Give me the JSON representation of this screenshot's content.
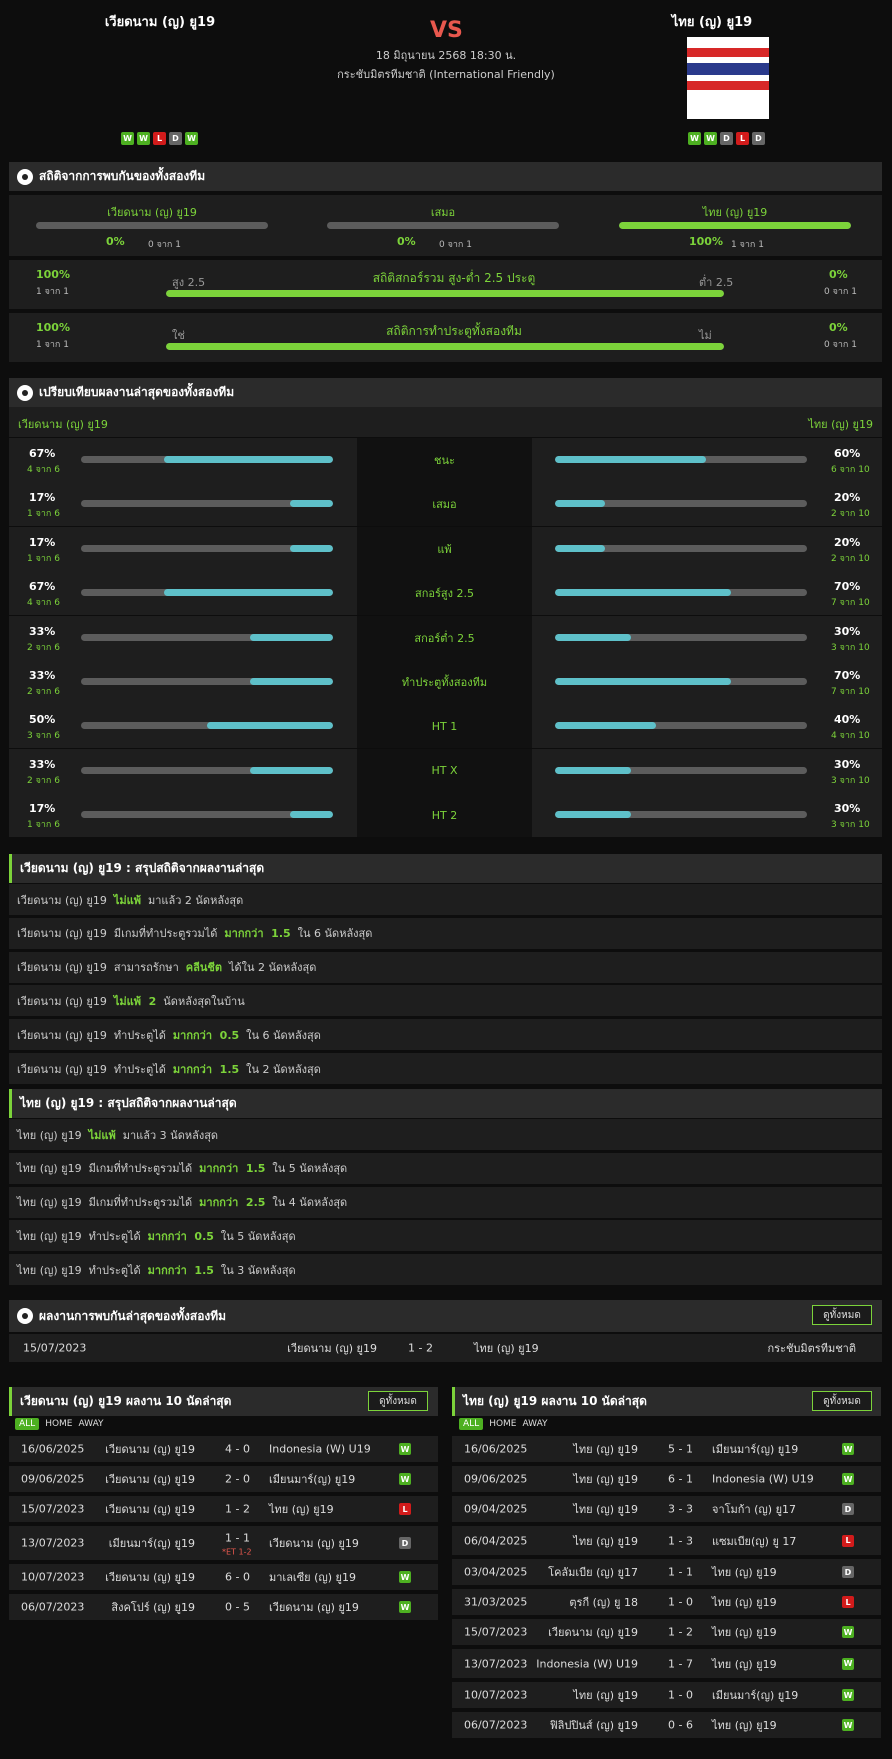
{
  "header": {
    "home": "เวียดนาม (ญ) ยู19",
    "away": "ไทย (ญ) ยู19",
    "vs": "VS",
    "datetime": "18 มิถุนายน 2568 18:30 น.",
    "competition": "กระชับมิตรทีมชาติ (International Friendly)",
    "home_form": [
      "W",
      "W",
      "L",
      "D",
      "W"
    ],
    "away_form": [
      "W",
      "W",
      "D",
      "L",
      "D"
    ],
    "flag_colors": [
      "#d72828",
      "#ffffff",
      "#2a3a8c",
      "#ffffff",
      "#d72828"
    ]
  },
  "h2h": {
    "title": "สถิติจากการพบกันของทั้งสองทีม",
    "cols": [
      {
        "label": "เวียดนาม (ญ) ยู19",
        "pct": "0%",
        "count": "0 จาก 1",
        "value": 0
      },
      {
        "label": "เสมอ",
        "pct": "0%",
        "count": "0 จาก 1",
        "value": 0
      },
      {
        "label": "ไทย (ญ) ยู19",
        "pct": "100%",
        "count": "1 จาก 1",
        "value": 1
      }
    ],
    "ou": {
      "title": "สถิติสกอร์รวม สูง-ต่ำ 2.5 ประตู",
      "left_label": "สูง 2.5",
      "right_label": "ต่ำ 2.5",
      "left_pct": "100%",
      "left_count": "1 จาก 1",
      "right_pct": "0%",
      "right_count": "0 จาก 1",
      "value": 1
    },
    "btts": {
      "title": "สถิติการทำประตูทั้งสองทีม",
      "left_label": "ใช่",
      "right_label": "ไม่",
      "left_pct": "100%",
      "left_count": "1 จาก 1",
      "right_pct": "0%",
      "right_count": "0 จาก 1",
      "value": 1
    }
  },
  "compare": {
    "title": "เปรียบเทียบผลงานล่าสุดของทั้งสองทีม",
    "home": "เวียดนาม (ญ) ยู19",
    "away": "ไทย (ญ) ยู19",
    "rows": [
      {
        "label": "ชนะ",
        "hp": "67%",
        "hc": "4 จาก 6",
        "hv": 0.67,
        "ap": "60%",
        "ac": "6 จาก 10",
        "av": 0.6
      },
      {
        "label": "เสมอ",
        "hp": "17%",
        "hc": "1 จาก 6",
        "hv": 0.17,
        "ap": "20%",
        "ac": "2 จาก 10",
        "av": 0.2
      },
      {
        "label": "แพ้",
        "hp": "17%",
        "hc": "1 จาก 6",
        "hv": 0.17,
        "ap": "20%",
        "ac": "2 จาก 10",
        "av": 0.2
      },
      {
        "label": "สกอร์สูง 2.5",
        "hp": "67%",
        "hc": "4 จาก 6",
        "hv": 0.67,
        "ap": "70%",
        "ac": "7 จาก 10",
        "av": 0.7
      },
      {
        "label": "สกอร์ต่ำ 2.5",
        "hp": "33%",
        "hc": "2 จาก 6",
        "hv": 0.33,
        "ap": "30%",
        "ac": "3 จาก 10",
        "av": 0.3
      },
      {
        "label": "ทำประตูทั้งสองทีม",
        "hp": "33%",
        "hc": "2 จาก 6",
        "hv": 0.33,
        "ap": "70%",
        "ac": "7 จาก 10",
        "av": 0.7
      },
      {
        "label": "HT 1",
        "hp": "50%",
        "hc": "3 จาก 6",
        "hv": 0.5,
        "ap": "40%",
        "ac": "4 จาก 10",
        "av": 0.4
      },
      {
        "label": "HT X",
        "hp": "33%",
        "hc": "2 จาก 6",
        "hv": 0.33,
        "ap": "30%",
        "ac": "3 จาก 10",
        "av": 0.3
      },
      {
        "label": "HT 2",
        "hp": "17%",
        "hc": "1 จาก 6",
        "hv": 0.17,
        "ap": "30%",
        "ac": "3 จาก 10",
        "av": 0.3
      }
    ]
  },
  "home_summary": {
    "title": "เวียดนาม (ญ) ยู19 : สรุปสถิติจากผลงานล่าสุด",
    "rows": [
      [
        {
          "t": "เวียดนาม (ญ) ยู19  "
        },
        {
          "t": "ไม่แพ้",
          "g": 1
        },
        {
          "t": "  มาแล้ว 2 นัดหลังสุด"
        }
      ],
      [
        {
          "t": "เวียดนาม (ญ) ยู19  มีเกมที่ทำประตูรวมได้  "
        },
        {
          "t": "มากกว่า  1.5",
          "g": 1
        },
        {
          "t": "  ใน 6 นัดหลังสุด"
        }
      ],
      [
        {
          "t": "เวียดนาม (ญ) ยู19  สามารถรักษา  "
        },
        {
          "t": "คลีนชีต",
          "g": 1
        },
        {
          "t": "  ได้ใน 2 นัดหลังสุด"
        }
      ],
      [
        {
          "t": "เวียดนาม (ญ) ยู19  "
        },
        {
          "t": "ไม่แพ้  2",
          "g": 1
        },
        {
          "t": "  นัดหลังสุดในบ้าน"
        }
      ],
      [
        {
          "t": "เวียดนาม (ญ) ยู19  ทำประตูได้  "
        },
        {
          "t": "มากกว่า  0.5",
          "g": 1
        },
        {
          "t": "  ใน 6 นัดหลังสุด"
        }
      ],
      [
        {
          "t": "เวียดนาม (ญ) ยู19  ทำประตูได้  "
        },
        {
          "t": "มากกว่า  1.5",
          "g": 1
        },
        {
          "t": "  ใน 2 นัดหลังสุด"
        }
      ]
    ]
  },
  "away_summary": {
    "title": "ไทย (ญ) ยู19 : สรุปสถิติจากผลงานล่าสุด",
    "rows": [
      [
        {
          "t": "ไทย (ญ) ยู19  "
        },
        {
          "t": "ไม่แพ้",
          "g": 1
        },
        {
          "t": "  มาแล้ว 3 นัดหลังสุด"
        }
      ],
      [
        {
          "t": "ไทย (ญ) ยู19  มีเกมที่ทำประตูรวมได้  "
        },
        {
          "t": "มากกว่า  1.5",
          "g": 1
        },
        {
          "t": "  ใน 5 นัดหลังสุด"
        }
      ],
      [
        {
          "t": "ไทย (ญ) ยู19  มีเกมที่ทำประตูรวมได้  "
        },
        {
          "t": "มากกว่า  2.5",
          "g": 1
        },
        {
          "t": "  ใน 4 นัดหลังสุด"
        }
      ],
      [
        {
          "t": "ไทย (ญ) ยู19  ทำประตูได้  "
        },
        {
          "t": "มากกว่า  0.5",
          "g": 1
        },
        {
          "t": "  ใน 5 นัดหลังสุด"
        }
      ],
      [
        {
          "t": "ไทย (ญ) ยู19  ทำประตูได้  "
        },
        {
          "t": "มากกว่า  1.5",
          "g": 1
        },
        {
          "t": "  ใน 3 นัดหลังสุด"
        }
      ]
    ]
  },
  "h2h_matches": {
    "title": "ผลงานการพบกันล่าสุดของทั้งสองทีม",
    "button": "ดูทั้งหมด",
    "rows": [
      {
        "date": "15/07/2023",
        "home": "เวียดนาม (ญ) ยู19",
        "score": "1 - 2",
        "away": "ไทย (ญ) ยู19",
        "comp": "กระชับมิตรทีมชาติ"
      }
    ]
  },
  "tabs": {
    "all": "ALL",
    "home": "HOME",
    "away": "AWAY"
  },
  "home_last": {
    "title": "เวียดนาม (ญ) ยู19 ผลงาน 10 นัดล่าสุด",
    "button": "ดูทั้งหมด",
    "rows": [
      {
        "date": "16/06/2025",
        "home": "เวียดนาม (ญ) ยู19",
        "score": "4 - 0",
        "away": "Indonesia (W) U19",
        "res": "W",
        "note": ""
      },
      {
        "date": "09/06/2025",
        "home": "เวียดนาม (ญ) ยู19",
        "score": "2 - 0",
        "away": "เมียนมาร์(ญ) ยู19",
        "res": "W",
        "note": ""
      },
      {
        "date": "15/07/2023",
        "home": "เวียดนาม (ญ) ยู19",
        "score": "1 - 2",
        "away": "ไทย (ญ) ยู19",
        "res": "L",
        "note": ""
      },
      {
        "date": "13/07/2023",
        "home": "เมียนมาร์(ญ) ยู19",
        "score": "1 - 1",
        "away": "เวียดนาม (ญ) ยู19",
        "res": "D",
        "note": "*ET 1-2"
      },
      {
        "date": "10/07/2023",
        "home": "เวียดนาม (ญ) ยู19",
        "score": "6 - 0",
        "away": "มาเลเซีย (ญ) ยู19",
        "res": "W",
        "note": ""
      },
      {
        "date": "06/07/2023",
        "home": "สิงคโปร์ (ญ) ยู19",
        "score": "0 - 5",
        "away": "เวียดนาม (ญ) ยู19",
        "res": "W",
        "note": ""
      }
    ]
  },
  "away_last": {
    "title": "ไทย (ญ) ยู19 ผลงาน 10 นัดล่าสุด",
    "button": "ดูทั้งหมด",
    "rows": [
      {
        "date": "16/06/2025",
        "home": "ไทย (ญ) ยู19",
        "score": "5 - 1",
        "away": "เมียนมาร์(ญ) ยู19",
        "res": "W"
      },
      {
        "date": "09/06/2025",
        "home": "ไทย (ญ) ยู19",
        "score": "6 - 1",
        "away": "Indonesia (W) U19",
        "res": "W"
      },
      {
        "date": "09/04/2025",
        "home": "ไทย (ญ) ยู19",
        "score": "3 - 3",
        "away": "จาโมก้า (ญ) ยู17",
        "res": "D"
      },
      {
        "date": "06/04/2025",
        "home": "ไทย (ญ) ยู19",
        "score": "1 - 3",
        "away": "แซมเบีย(ญ) ยู 17",
        "res": "L"
      },
      {
        "date": "03/04/2025",
        "home": "โคลัมเบีย (ญ) ยู17",
        "score": "1 - 1",
        "away": "ไทย (ญ) ยู19",
        "res": "D"
      },
      {
        "date": "31/03/2025",
        "home": "ตุรกี (ญ) ยู 18",
        "score": "1 - 0",
        "away": "ไทย (ญ) ยู19",
        "res": "L"
      },
      {
        "date": "15/07/2023",
        "home": "เวียดนาม (ญ) ยู19",
        "score": "1 - 2",
        "away": "ไทย (ญ) ยู19",
        "res": "W"
      },
      {
        "date": "13/07/2023",
        "home": "Indonesia (W) U19",
        "score": "1 - 7",
        "away": "ไทย (ญ) ยู19",
        "res": "W"
      },
      {
        "date": "10/07/2023",
        "home": "ไทย (ญ) ยู19",
        "score": "1 - 0",
        "away": "เมียนมาร์(ญ) ยู19",
        "res": "W"
      },
      {
        "date": "06/07/2023",
        "home": "ฟิลิปปินส์ (ญ) ยู19",
        "score": "0 - 6",
        "away": "ไทย (ญ) ยู19",
        "res": "W"
      }
    ]
  }
}
